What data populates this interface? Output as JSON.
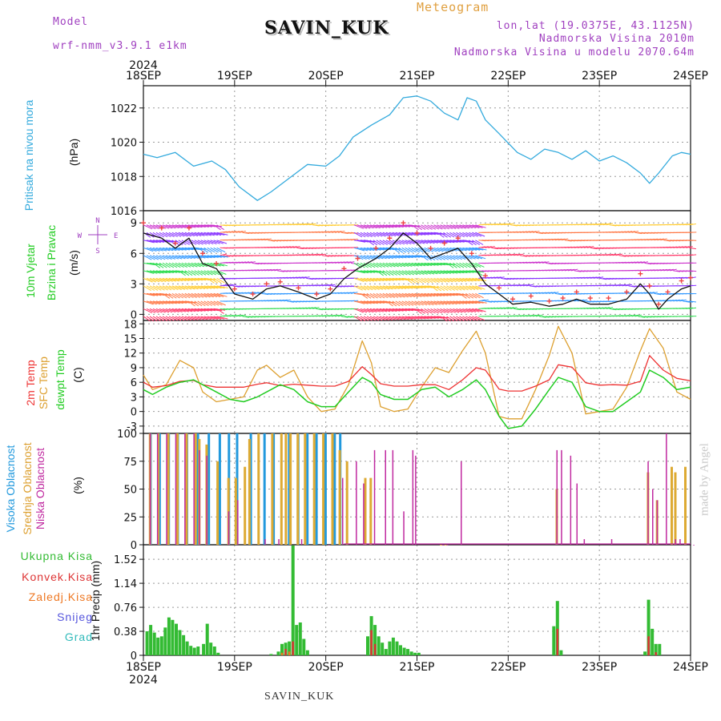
{
  "header": {
    "model_label": "Model",
    "model_name": "wrf-nmm_v3.9.1 e1km",
    "title": "Meteogram",
    "station": "SAVIN_KUK",
    "coords": "lon,lat (19.0375E, 43.1125N)",
    "altitude": "Nadmorska Visina 2010m",
    "model_altitude": "Nadmorska Visina u modelu 2070.64m",
    "year": "2024"
  },
  "footer": {
    "station": "SAVIN_KUK",
    "year": "2024",
    "credit": "made by Angel"
  },
  "x_axis": {
    "labels": [
      "18SEP",
      "19SEP",
      "20SEP",
      "21SEP",
      "22SEP",
      "23SEP",
      "24SEP"
    ]
  },
  "colors": {
    "pressure": "#33aadd",
    "t2m": "#ee3333",
    "sfc": "#dda030",
    "dewpt": "#22cc22",
    "high": "#2299dd",
    "mid": "#ddaa33",
    "low": "#c02aa0",
    "precip": "#33bb33",
    "conv": "#dd3333",
    "frozen": "#ee7722",
    "snow": "#5555dd",
    "graupel": "#33bbbb",
    "speed": "#111111",
    "gust": "#ee4444"
  },
  "panels": {
    "pressure": {
      "label": "Pritisak na nivou mora",
      "unit": "(hPa)",
      "ticks": [
        "1016",
        "1018",
        "1020",
        "1022"
      ]
    },
    "wind": {
      "label1": "10m Vjetar",
      "label2": "Brzina i Pravac",
      "unit": "(m/s)",
      "ticks": [
        "0",
        "3",
        "6",
        "9"
      ],
      "compass": {
        "n": "N",
        "w": "W",
        "e": "E",
        "s": "S"
      }
    },
    "temp": {
      "label1": "2m Temp",
      "label2": "SFC Temp",
      "label3": "dewpt Temp",
      "unit": "(C)",
      "ticks": [
        "-3",
        "0",
        "3",
        "6",
        "9",
        "12",
        "15",
        "18"
      ]
    },
    "cloud": {
      "label1": "Visoka Oblacnost",
      "label2": "Srednja Oblacnost",
      "label3": "Niska Oblacnost",
      "unit": "(%)",
      "ticks": [
        "0",
        "25",
        "50",
        "75",
        "100"
      ]
    },
    "precip": {
      "legend": [
        "Ukupna Kisa",
        "Konvek.Kisa",
        "Zaledj.Kisa",
        "Snijeg",
        "Grad"
      ],
      "unit": "1hr Precip (mm)",
      "ticks": [
        "0",
        "0.38",
        "0.76",
        "1.14",
        "1.52"
      ]
    }
  },
  "chart_data": [
    {
      "type": "line",
      "name": "pressure",
      "ylabel": "Pritisak na nivou mora (hPa)",
      "ylim": [
        1016,
        1023.3
      ],
      "grid": true,
      "x_days": [
        0,
        0.15,
        0.35,
        0.55,
        0.75,
        0.9,
        1.05,
        1.25,
        1.4,
        1.6,
        1.8,
        2.0,
        2.15,
        2.3,
        2.5,
        2.7,
        2.85,
        3.0,
        3.15,
        3.3,
        3.45,
        3.55,
        3.65,
        3.75,
        3.9,
        4.1,
        4.25,
        4.4,
        4.55,
        4.7,
        4.85,
        5.0,
        5.15,
        5.3,
        5.45,
        5.55,
        5.65,
        5.8,
        5.9,
        6.0
      ],
      "series": [
        {
          "values": [
            1019.3,
            1019.1,
            1019.4,
            1018.6,
            1018.9,
            1018.4,
            1017.4,
            1016.6,
            1017.1,
            1017.9,
            1018.7,
            1018.6,
            1019.2,
            1020.3,
            1021.0,
            1021.6,
            1022.6,
            1022.7,
            1022.4,
            1021.7,
            1021.3,
            1022.6,
            1022.4,
            1021.3,
            1020.5,
            1019.4,
            1019.0,
            1019.6,
            1019.4,
            1019.0,
            1019.5,
            1018.9,
            1019.2,
            1018.8,
            1018.2,
            1017.6,
            1018.2,
            1019.2,
            1019.4,
            1019.3
          ]
        }
      ]
    },
    {
      "type": "line",
      "name": "wind",
      "ylabel": "10m Vjetar Brzina i Pravac (m/s)",
      "ylim": [
        -0.6,
        10.2
      ],
      "grid": true,
      "x_days": [
        0,
        0.2,
        0.35,
        0.5,
        0.65,
        0.8,
        1.0,
        1.2,
        1.35,
        1.5,
        1.7,
        1.9,
        2.05,
        2.2,
        2.35,
        2.55,
        2.7,
        2.85,
        3.0,
        3.15,
        3.3,
        3.45,
        3.6,
        3.75,
        3.9,
        4.05,
        4.25,
        4.45,
        4.6,
        4.75,
        4.9,
        5.1,
        5.3,
        5.45,
        5.55,
        5.65,
        5.75,
        5.9,
        6.0
      ],
      "series": [
        {
          "name": "speed",
          "values": [
            8,
            7.5,
            6.5,
            7.5,
            5,
            4.5,
            2,
            1.5,
            2.5,
            2.8,
            2.2,
            1.5,
            2,
            3.5,
            4.5,
            5.5,
            6.5,
            8,
            7,
            5.5,
            6,
            6.5,
            5,
            3,
            2,
            1,
            1.2,
            0.8,
            1,
            1.5,
            1,
            1,
            1.5,
            3,
            2,
            0.5,
            1.5,
            2.5,
            2.8
          ]
        },
        {
          "name": "gust",
          "values": [
            9,
            8.5,
            7,
            8.5,
            6,
            5,
            2.5,
            2,
            3,
            3.2,
            2.6,
            2,
            2.5,
            4.5,
            5.5,
            6.5,
            7.5,
            9,
            8,
            6.5,
            7,
            7.5,
            6,
            3.8,
            2.6,
            1.5,
            1.8,
            1.3,
            1.6,
            2.2,
            1.6,
            1.6,
            2.2,
            4,
            2.8,
            1,
            2.2,
            3.3,
            3.6
          ]
        }
      ]
    },
    {
      "type": "line",
      "name": "temperature",
      "ylabel": "Temp (C)",
      "ylim": [
        -4.5,
        18.7
      ],
      "grid": true,
      "x_days": [
        0,
        0.1,
        0.25,
        0.4,
        0.55,
        0.65,
        0.8,
        0.95,
        1.1,
        1.25,
        1.35,
        1.5,
        1.65,
        1.8,
        1.95,
        2.1,
        2.25,
        2.4,
        2.5,
        2.6,
        2.75,
        2.9,
        3.05,
        3.2,
        3.35,
        3.5,
        3.65,
        3.75,
        3.9,
        4.0,
        4.15,
        4.3,
        4.45,
        4.55,
        4.7,
        4.85,
        5.0,
        5.15,
        5.3,
        5.45,
        5.55,
        5.7,
        5.85,
        6.0
      ],
      "series": [
        {
          "name": "2m Temp",
          "values": [
            6,
            5,
            5.3,
            6.2,
            6.4,
            5.5,
            5,
            5,
            5,
            5.6,
            5.9,
            5.3,
            5.6,
            5.4,
            5.2,
            5.2,
            6.2,
            9.2,
            7.6,
            5.7,
            5.2,
            5.2,
            5.5,
            5.5,
            4.5,
            6.5,
            9,
            8.5,
            4.6,
            4.2,
            4.2,
            5.2,
            6.5,
            9.6,
            9.1,
            5.9,
            5.4,
            5.5,
            5.4,
            6.2,
            11.5,
            8.5,
            6.8,
            6.3
          ]
        },
        {
          "name": "SFC Temp",
          "values": [
            7.5,
            4.5,
            5.5,
            10.5,
            9,
            4,
            2,
            2.5,
            3,
            8.5,
            9.5,
            7,
            8.5,
            3,
            0,
            0.5,
            5.5,
            14.5,
            10,
            1,
            0,
            0.5,
            5,
            9,
            8,
            12.5,
            16.5,
            12,
            -1,
            -1.5,
            -1.5,
            4.5,
            11.5,
            17.5,
            12,
            -0.5,
            0,
            0.5,
            5,
            12.5,
            17,
            13,
            4,
            2.5
          ]
        },
        {
          "name": "dewpt Temp",
          "values": [
            4.5,
            3.5,
            5,
            6,
            6.5,
            5.5,
            4,
            2.5,
            2,
            3,
            4,
            5.5,
            4.5,
            2,
            1,
            1,
            4,
            7,
            6,
            3.5,
            2.5,
            2.5,
            4.5,
            5,
            3,
            4.5,
            6.5,
            4.5,
            -1,
            -3.5,
            -3,
            0.5,
            4.5,
            7,
            6,
            1,
            0,
            0,
            2,
            4,
            8.5,
            7,
            4.5,
            5
          ]
        }
      ]
    },
    {
      "type": "bar",
      "name": "cloud cover",
      "ylabel": "Oblacnost (%)",
      "ylim": [
        0,
        100
      ],
      "grid": true,
      "series": [
        {
          "name": "Visoka Oblacnost",
          "x_days": [
            0.1,
            0.2,
            0.3,
            0.4,
            0.5,
            0.62,
            0.74,
            0.86,
            0.96,
            1.05,
            1.2,
            1.35,
            1.45,
            1.62,
            1.72,
            1.82,
            1.92,
            2.02,
            2.12,
            2.18
          ],
          "values": [
            100,
            100,
            100,
            100,
            100,
            100,
            100,
            100,
            100,
            100,
            100,
            100,
            100,
            100,
            100,
            100,
            100,
            100,
            100,
            100
          ]
        },
        {
          "name": "Srednja Oblacnost",
          "x_days": [
            0.06,
            0.15,
            0.26,
            0.36,
            0.46,
            0.56,
            0.6,
            0.68,
            0.8,
            0.92,
            1.0,
            1.1,
            1.15,
            1.25,
            1.4,
            1.5,
            1.55,
            1.6,
            1.68,
            1.76,
            1.86,
            1.96,
            2.06,
            2.14,
            2.22,
            2.42,
            2.48,
            3.25,
            3.3,
            4.52,
            5.52,
            5.62,
            5.78,
            5.82,
            5.93
          ],
          "values": [
            100,
            100,
            100,
            100,
            100,
            100,
            95,
            90,
            75,
            60,
            60,
            70,
            95,
            100,
            100,
            100,
            100,
            100,
            100,
            100,
            100,
            100,
            100,
            85,
            75,
            60,
            60,
            0,
            0,
            50,
            65,
            40,
            70,
            65,
            70
          ]
        },
        {
          "name": "Niska Oblacnost",
          "x_days": [
            0.04,
            0.12,
            0.22,
            0.32,
            0.42,
            0.52,
            0.58,
            0.66,
            0.9,
            1.0,
            1.3,
            1.45,
            1.7,
            2.0,
            2.15,
            2.3,
            2.38,
            2.5,
            2.62,
            2.7,
            2.82,
            2.92,
            2.95,
            3.25,
            3.3,
            3.45,
            4.5,
            4.55,
            4.65,
            4.72,
            4.8,
            5.1,
            5.5,
            5.55,
            5.6,
            5.7,
            5.8,
            5.85,
            6.0
          ],
          "values": [
            100,
            100,
            100,
            100,
            100,
            100,
            85,
            80,
            30,
            40,
            5,
            5,
            5,
            0,
            60,
            75,
            55,
            85,
            85,
            85,
            30,
            85,
            80,
            0,
            0,
            75,
            85,
            85,
            80,
            55,
            5,
            5,
            75,
            50,
            40,
            100,
            5,
            5,
            0
          ]
        }
      ]
    },
    {
      "type": "bar",
      "name": "precipitation",
      "ylabel": "1hr Precip (mm)",
      "ylim": [
        0,
        1.75
      ],
      "grid": true,
      "series": [
        {
          "name": "Ukupna Kisa",
          "x_days": [
            0.04,
            0.08,
            0.12,
            0.16,
            0.2,
            0.24,
            0.28,
            0.32,
            0.36,
            0.4,
            0.44,
            0.48,
            0.52,
            0.56,
            0.6,
            0.66,
            0.7,
            0.74,
            0.78,
            0.82,
            1.4,
            1.48,
            1.52,
            1.56,
            1.6,
            1.64,
            1.68,
            1.72,
            1.76,
            1.8,
            2.46,
            2.5,
            2.54,
            2.58,
            2.62,
            2.66,
            2.7,
            2.74,
            2.78,
            2.82,
            2.86,
            2.9,
            2.94,
            2.98,
            3.02,
            4.5,
            4.54,
            4.58,
            5.5,
            5.54,
            5.58,
            5.62,
            5.66
          ],
          "values": [
            0.38,
            0.48,
            0.36,
            0.28,
            0.3,
            0.44,
            0.6,
            0.56,
            0.5,
            0.4,
            0.32,
            0.22,
            0.15,
            0.12,
            0.14,
            0.18,
            0.5,
            0.2,
            0.14,
            0.04,
            0.02,
            0.06,
            0.18,
            0.2,
            0.22,
            1.74,
            0.48,
            0.52,
            0.26,
            0.08,
            0.3,
            0.62,
            0.48,
            0.3,
            0.2,
            0.1,
            0.22,
            0.28,
            0.22,
            0.16,
            0.12,
            0.1,
            0.06,
            0.04,
            0.04,
            0.46,
            0.86,
            0.08,
            0.06,
            0.88,
            0.42,
            0.18,
            0.18
          ]
        },
        {
          "name": "Konvek.Kisa",
          "x_days": [
            1.56,
            1.64,
            2.5,
            2.54,
            4.54,
            5.54,
            5.62
          ],
          "values": [
            0.1,
            0.22,
            0.4,
            0.18,
            0.42,
            0.3,
            0.05
          ]
        },
        {
          "name": "Zaledj.Kisa",
          "x_days": [
            1.52,
            1.6
          ],
          "values": [
            0.04,
            0.06
          ]
        },
        {
          "name": "Snijeg",
          "x_days": [],
          "values": []
        },
        {
          "name": "Grad",
          "x_days": [],
          "values": []
        }
      ]
    }
  ]
}
